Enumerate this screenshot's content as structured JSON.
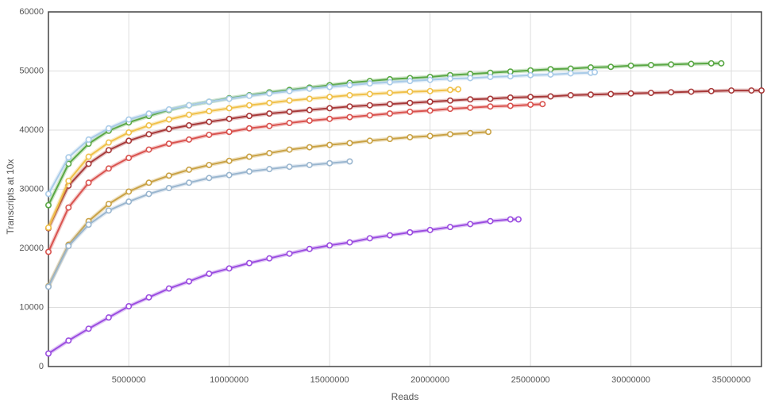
{
  "chart_data": {
    "type": "line",
    "xlabel": "Reads",
    "ylabel": "Transcripts at 10x",
    "xlim": [
      1000000,
      36500000
    ],
    "xticks": [
      5000000,
      10000000,
      15000000,
      20000000,
      25000000,
      30000000,
      35000000
    ],
    "ylim": [
      0,
      60000
    ],
    "yticks": [
      0,
      10000,
      20000,
      30000,
      40000,
      50000,
      60000
    ],
    "grid": true,
    "series": [
      {
        "color": "#5aa845",
        "x": [
          1000000,
          2000000,
          3000000,
          4000000,
          5000000,
          6000000,
          7000000,
          8000000,
          9000000,
          10000000,
          11000000,
          12000000,
          13000000,
          14000000,
          15000000,
          16000000,
          17000000,
          18000000,
          19000000,
          20000000,
          21000000,
          22000000,
          23000000,
          24000000,
          25000000,
          26000000,
          27000000,
          28000000,
          29000000,
          30000000,
          31000000,
          32000000,
          33000000,
          34000000,
          34500000
        ],
        "values": [
          27300,
          34300,
          37700,
          39900,
          41300,
          42400,
          43400,
          44200,
          44800,
          45400,
          45900,
          46400,
          46800,
          47200,
          47600,
          48000,
          48300,
          48600,
          48800,
          49000,
          49300,
          49500,
          49700,
          49900,
          50100,
          50300,
          50400,
          50600,
          50700,
          50900,
          51000,
          51100,
          51200,
          51300,
          51300
        ]
      },
      {
        "color": "#a9cbe8",
        "x": [
          1000000,
          2000000,
          3000000,
          4000000,
          5000000,
          6000000,
          7000000,
          8000000,
          9000000,
          10000000,
          11000000,
          12000000,
          13000000,
          14000000,
          15000000,
          16000000,
          17000000,
          18000000,
          19000000,
          20000000,
          21000000,
          22000000,
          23000000,
          24000000,
          25000000,
          26000000,
          27000000,
          28000000,
          28200000
        ],
        "values": [
          29200,
          35400,
          38400,
          40300,
          41800,
          42800,
          43500,
          44200,
          44800,
          45300,
          45800,
          46200,
          46600,
          47000,
          47300,
          47600,
          47900,
          48100,
          48300,
          48500,
          48700,
          48800,
          49000,
          49100,
          49300,
          49400,
          49600,
          49700,
          49800
        ]
      },
      {
        "color": "#a83a3a",
        "x": [
          1000000,
          2000000,
          3000000,
          4000000,
          5000000,
          6000000,
          7000000,
          8000000,
          9000000,
          10000000,
          11000000,
          12000000,
          13000000,
          14000000,
          15000000,
          16000000,
          17000000,
          18000000,
          19000000,
          20000000,
          21000000,
          22000000,
          23000000,
          24000000,
          25000000,
          26000000,
          27000000,
          28000000,
          29000000,
          30000000,
          31000000,
          32000000,
          33000000,
          34000000,
          35000000,
          36000000,
          36500000
        ],
        "values": [
          23400,
          30600,
          34300,
          36600,
          38200,
          39300,
          40200,
          40800,
          41400,
          41900,
          42400,
          42800,
          43100,
          43400,
          43700,
          44000,
          44200,
          44400,
          44600,
          44800,
          45000,
          45200,
          45300,
          45500,
          45600,
          45700,
          45900,
          46000,
          46100,
          46200,
          46300,
          46400,
          46500,
          46600,
          46700,
          46700,
          46700
        ]
      },
      {
        "color": "#f0c14a",
        "x": [
          1000000,
          2000000,
          3000000,
          4000000,
          5000000,
          6000000,
          7000000,
          8000000,
          9000000,
          10000000,
          11000000,
          12000000,
          13000000,
          14000000,
          15000000,
          16000000,
          17000000,
          18000000,
          19000000,
          20000000,
          21000000,
          21400000
        ],
        "values": [
          23500,
          31400,
          35500,
          37900,
          39600,
          40800,
          41800,
          42600,
          43200,
          43700,
          44200,
          44600,
          45000,
          45300,
          45600,
          45900,
          46100,
          46300,
          46500,
          46600,
          46800,
          46900
        ]
      },
      {
        "color": "#d9534f",
        "x": [
          1000000,
          2000000,
          3000000,
          4000000,
          5000000,
          6000000,
          7000000,
          8000000,
          9000000,
          10000000,
          11000000,
          12000000,
          13000000,
          14000000,
          15000000,
          16000000,
          17000000,
          18000000,
          19000000,
          20000000,
          21000000,
          22000000,
          23000000,
          24000000,
          25000000,
          25600000
        ],
        "values": [
          19400,
          26900,
          31100,
          33500,
          35300,
          36700,
          37700,
          38400,
          39200,
          39700,
          40300,
          40700,
          41200,
          41600,
          41900,
          42200,
          42500,
          42800,
          43100,
          43300,
          43600,
          43800,
          44000,
          44100,
          44300,
          44400
        ]
      },
      {
        "color": "#c9a245",
        "x": [
          1000000,
          2000000,
          3000000,
          4000000,
          5000000,
          6000000,
          7000000,
          8000000,
          9000000,
          10000000,
          11000000,
          12000000,
          13000000,
          14000000,
          15000000,
          16000000,
          17000000,
          18000000,
          19000000,
          20000000,
          21000000,
          22000000,
          22900000
        ],
        "values": [
          13600,
          20600,
          24600,
          27500,
          29600,
          31100,
          32300,
          33300,
          34100,
          34800,
          35500,
          36100,
          36700,
          37100,
          37500,
          37800,
          38200,
          38500,
          38800,
          39000,
          39300,
          39500,
          39700
        ]
      },
      {
        "color": "#9ab6cf",
        "x": [
          1000000,
          2000000,
          3000000,
          4000000,
          5000000,
          6000000,
          7000000,
          8000000,
          9000000,
          10000000,
          11000000,
          12000000,
          13000000,
          14000000,
          15000000,
          16000000
        ],
        "values": [
          13500,
          20400,
          24000,
          26400,
          27900,
          29200,
          30200,
          31100,
          31900,
          32400,
          33000,
          33400,
          33800,
          34100,
          34400,
          34700
        ]
      },
      {
        "color": "#9b4de0",
        "x": [
          1000000,
          2000000,
          3000000,
          4000000,
          5000000,
          6000000,
          7000000,
          8000000,
          9000000,
          10000000,
          11000000,
          12000000,
          13000000,
          14000000,
          15000000,
          16000000,
          17000000,
          18000000,
          19000000,
          20000000,
          21000000,
          22000000,
          23000000,
          24000000,
          24400000
        ],
        "values": [
          2200,
          4400,
          6400,
          8300,
          10200,
          11700,
          13200,
          14400,
          15700,
          16600,
          17500,
          18300,
          19100,
          19900,
          20500,
          21000,
          21700,
          22200,
          22700,
          23100,
          23600,
          24100,
          24600,
          24900,
          24900
        ]
      }
    ]
  }
}
